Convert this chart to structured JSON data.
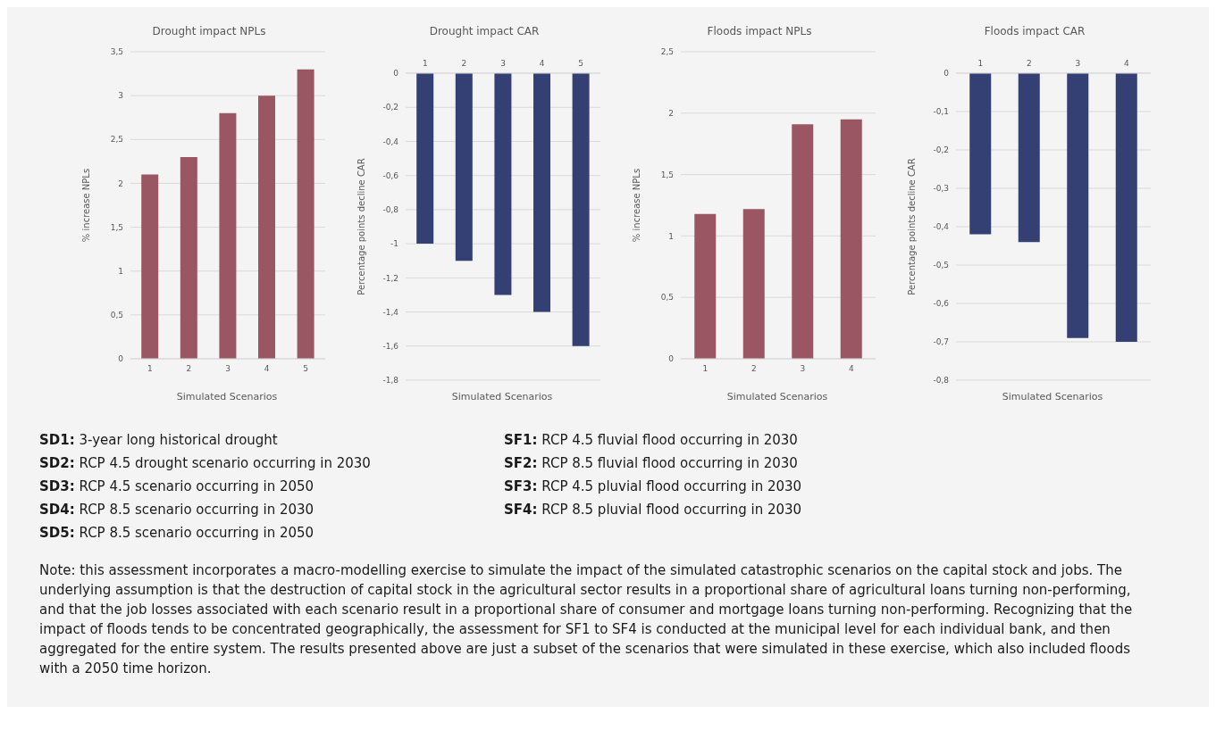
{
  "chart_data": [
    {
      "type": "bar",
      "title": "Drought impact NPLs",
      "xlabel": "Simulated Scenarios",
      "ylabel": "% increase NPLs",
      "categories": [
        "1",
        "2",
        "3",
        "4",
        "5"
      ],
      "values": [
        2.1,
        2.3,
        2.8,
        3.0,
        3.3
      ],
      "color": "#9b5664",
      "ylim": [
        0,
        3.5
      ],
      "yticks": [
        0,
        {
          "value": 0.5,
          "label": "0,5"
        },
        1,
        {
          "value": 1.5,
          "label": "1,5"
        },
        2,
        {
          "value": 2.5,
          "label": "2,5"
        },
        3,
        {
          "value": 3.5,
          "label": "3,5"
        }
      ],
      "grid": "y"
    },
    {
      "type": "bar",
      "title": "Drought impact CAR",
      "xlabel": "Simulated Scenarios",
      "ylabel": "Percentage points decline CAR",
      "categories": [
        "1",
        "2",
        "3",
        "4",
        "5"
      ],
      "values": [
        -1.0,
        -1.1,
        -1.3,
        -1.4,
        -1.6
      ],
      "color": "#343f74",
      "ylim": [
        -1.8,
        0
      ],
      "yticks": [
        0,
        {
          "value": -0.2,
          "label": "-0,2"
        },
        {
          "value": -0.4,
          "label": "-0,4"
        },
        {
          "value": -0.6,
          "label": "-0,6"
        },
        {
          "value": -0.8,
          "label": "-0,8"
        },
        -1,
        {
          "value": -1.2,
          "label": "-1,2"
        },
        {
          "value": -1.4,
          "label": "-1,4"
        },
        {
          "value": -1.6,
          "label": "-1,6"
        },
        {
          "value": -1.8,
          "label": "-1,8"
        }
      ],
      "grid": "y"
    },
    {
      "type": "bar",
      "title": "Floods impact NPLs",
      "xlabel": "Simulated Scenarios",
      "ylabel": "% increase NPLs",
      "categories": [
        "1",
        "2",
        "3",
        "4"
      ],
      "values": [
        1.18,
        1.22,
        1.91,
        1.95
      ],
      "color": "#9b5664",
      "ylim": [
        0,
        2.5
      ],
      "yticks": [
        0,
        {
          "value": 0.5,
          "label": "0,5"
        },
        1,
        {
          "value": 1.5,
          "label": "1,5"
        },
        2,
        {
          "value": 2.5,
          "label": "2,5"
        }
      ],
      "grid": "y"
    },
    {
      "type": "bar",
      "title": "Floods impact CAR",
      "xlabel": "Simulated Scenarios",
      "ylabel": "Percentage points decline CAR",
      "categories": [
        "1",
        "2",
        "3",
        "4"
      ],
      "values": [
        -0.42,
        -0.44,
        -0.69,
        -0.7
      ],
      "color": "#343f74",
      "ylim": [
        -0.8,
        0
      ],
      "yticks": [
        0,
        {
          "value": -0.1,
          "label": "-0,1"
        },
        {
          "value": -0.2,
          "label": "-0,2"
        },
        {
          "value": -0.3,
          "label": "-0,3"
        },
        {
          "value": -0.4,
          "label": "-0,4"
        },
        {
          "value": -0.5,
          "label": "-0,5"
        },
        {
          "value": -0.6,
          "label": "-0,6"
        },
        {
          "value": -0.7,
          "label": "-0,7"
        },
        {
          "value": -0.8,
          "label": "-0,8"
        }
      ],
      "grid": "y"
    },
    {
      "type": "other",
      "annotations": [
        "SD1: 3-year long historical drought",
        "SD2: RCP 4.5 drought scenario occurring in 2030",
        "SD3: RCP 4.5 scenario occurring in 2050",
        "SD4: RCP 8.5 scenario occurring in 2030",
        "SD5: RCP 8.5 scenario occurring in 2050",
        "SF1: RCP 4.5 fluvial flood occurring in 2030",
        "SF2: RCP 8.5 fluvial flood occurring in 2030",
        "SF3: RCP 4.5 pluvial flood occurring in 2030",
        "SF4: RCP 8.5 pluvial flood occurring in 2030",
        "Note: this assessment incorporates a macro-modelling exercise to simulate the impact of the simulated catastrophic scenarios on the capital stock and jobs. The underlying assumption is that the destruction of capital stock in the agricultural sector results in a proportional share of agricultural loans turning non-performing, and that the job losses associated with each scenario result in a proportional share of consumer and mortgage loans turning non-performing. Recognizing that the impact of floods tends to be concentrated geographically, the assessment for SF1 to SF4 is conducted at the municipal level for each individual bank, and then aggregated for the entire system. The results presented above are just a subset of the scenarios that were simulated in these exercise, which also included floods with a 2050 time horizon."
      ]
    }
  ]
}
